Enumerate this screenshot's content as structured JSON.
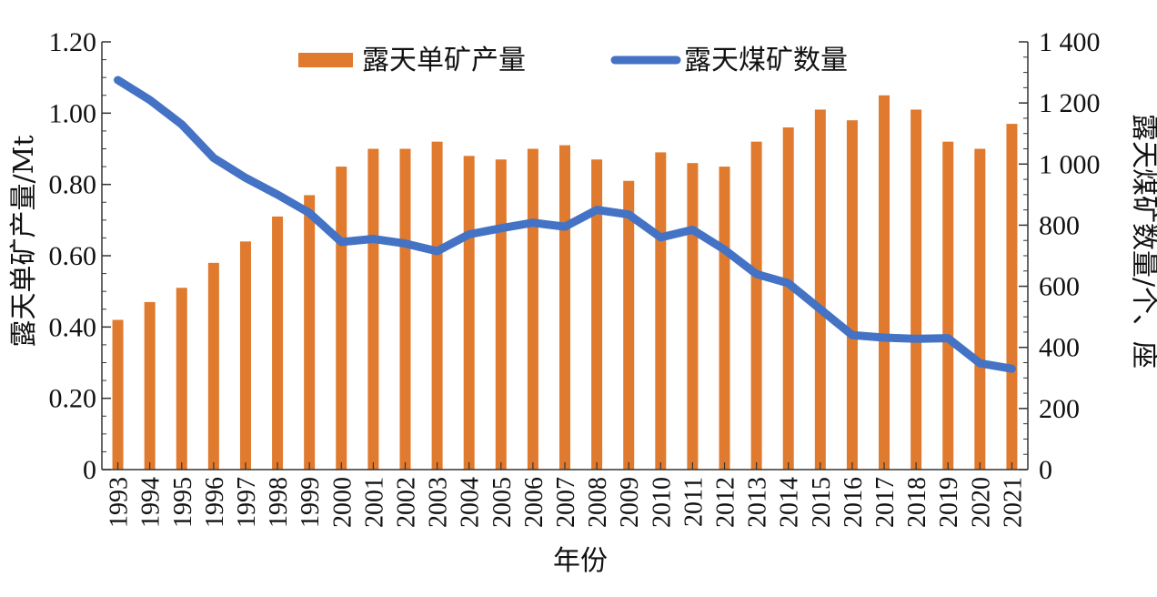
{
  "chart_data": {
    "type": "bar+line",
    "xlabel": "年份",
    "categories": [
      "1993",
      "1994",
      "1995",
      "1996",
      "1997",
      "1998",
      "1999",
      "2000",
      "2001",
      "2002",
      "2003",
      "2004",
      "2005",
      "2006",
      "2007",
      "2008",
      "2009",
      "2010",
      "2011",
      "2012",
      "2013",
      "2014",
      "2015",
      "2016",
      "2017",
      "2018",
      "2019",
      "2020",
      "2021"
    ],
    "series": [
      {
        "name": "露天单矿产量",
        "type": "bar",
        "axis": "left",
        "color": "#E07A2E",
        "values": [
          0.42,
          0.47,
          0.51,
          0.58,
          0.64,
          0.71,
          0.77,
          0.85,
          0.9,
          0.9,
          0.92,
          0.88,
          0.87,
          0.9,
          0.91,
          0.87,
          0.81,
          0.89,
          0.86,
          0.85,
          0.92,
          0.96,
          1.01,
          0.98,
          1.05,
          1.01,
          0.92,
          0.9,
          0.97
        ]
      },
      {
        "name": "露天煤矿数量",
        "type": "line",
        "axis": "right",
        "color": "#4472C4",
        "values": [
          1275,
          1210,
          1130,
          1020,
          955,
          900,
          840,
          745,
          755,
          740,
          715,
          770,
          790,
          808,
          795,
          850,
          835,
          760,
          785,
          720,
          640,
          610,
          525,
          440,
          432,
          428,
          430,
          348,
          330
        ]
      }
    ],
    "left_axis": {
      "label": "露天单矿产量/Mt",
      "ylim": [
        0,
        1.2
      ],
      "ticks": [
        "0",
        "0.20",
        "0.40",
        "0.60",
        "0.80",
        "1.00",
        "1.20"
      ]
    },
    "right_axis": {
      "label": "露天煤矿数量/个、座",
      "ylim": [
        0,
        1400
      ],
      "ticks": [
        "0",
        "200",
        "400",
        "600",
        "800",
        "1 000",
        "1 200",
        "1 400"
      ]
    },
    "legend_position": "top-center",
    "grid": false
  }
}
